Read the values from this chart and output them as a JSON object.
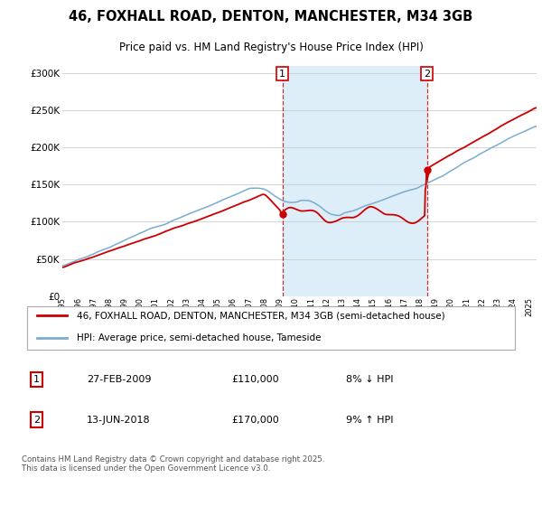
{
  "title_line1": "46, FOXHALL ROAD, DENTON, MANCHESTER, M34 3GB",
  "title_line2": "Price paid vs. HM Land Registry's House Price Index (HPI)",
  "ylim": [
    0,
    310000
  ],
  "yticks": [
    0,
    50000,
    100000,
    150000,
    200000,
    250000,
    300000
  ],
  "ytick_labels": [
    "£0",
    "£50K",
    "£100K",
    "£150K",
    "£200K",
    "£250K",
    "£300K"
  ],
  "sale1_date": "27-FEB-2009",
  "sale1_price": 110000,
  "sale1_label": "8% ↓ HPI",
  "sale2_date": "13-JUN-2018",
  "sale2_price": 170000,
  "sale2_label": "9% ↑ HPI",
  "line_color_property": "#cc0000",
  "line_color_hpi": "#7aadcf",
  "shade_color": "#ddeef8",
  "legend_property": "46, FOXHALL ROAD, DENTON, MANCHESTER, M34 3GB (semi-detached house)",
  "legend_hpi": "HPI: Average price, semi-detached house, Tameside",
  "footnote": "Contains HM Land Registry data © Crown copyright and database right 2025.\nThis data is licensed under the Open Government Licence v3.0.",
  "grid_color": "#cccccc",
  "vline_color": "#cc0000",
  "sale1_year": 2009.15,
  "sale2_year": 2018.45,
  "xstart": 1995,
  "xend": 2025.5
}
